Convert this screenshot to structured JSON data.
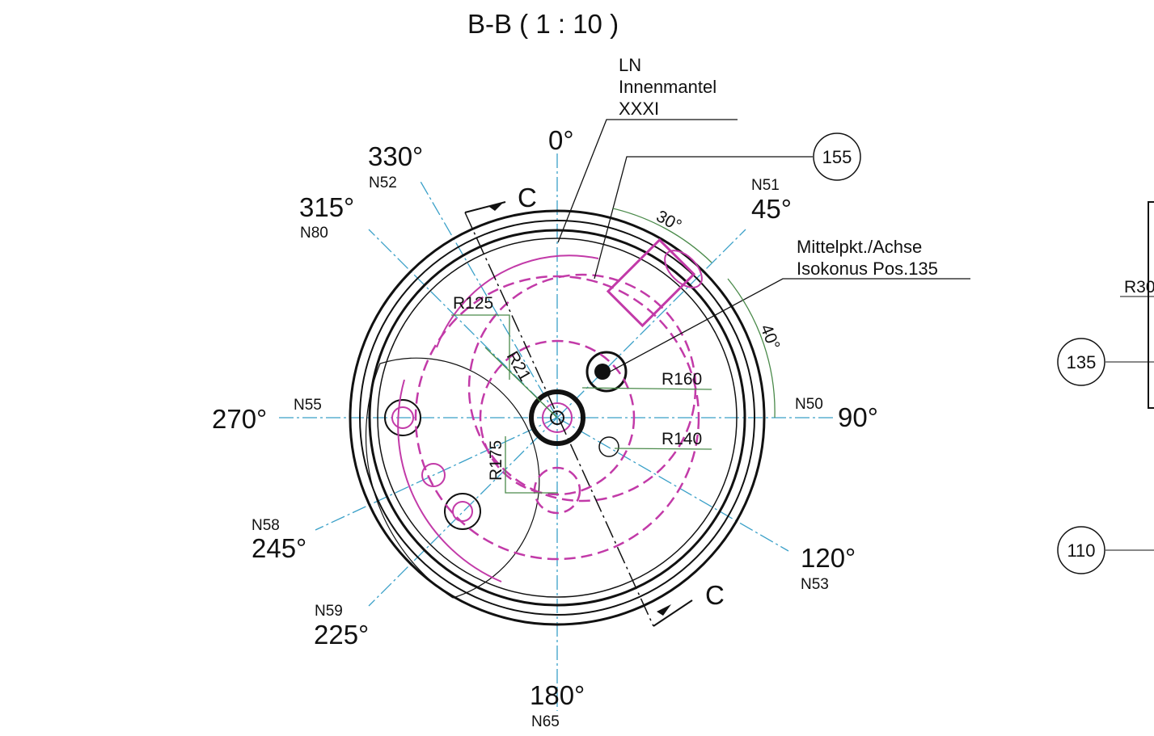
{
  "title": "B-B ( 1 : 10 )",
  "leader_note": {
    "lines": [
      "LN",
      "Innenmantel",
      "XXXI"
    ]
  },
  "center_note": {
    "lines": [
      "Mittelpkt./Achse",
      "Isokonus Pos.135"
    ]
  },
  "angles": [
    {
      "label": "0°"
    },
    {
      "label": "330°",
      "nozzle": "N52"
    },
    {
      "label": "315°",
      "nozzle": "N80"
    },
    {
      "label": "45°",
      "nozzle": "N51"
    },
    {
      "label": "270°",
      "nozzle": "N55"
    },
    {
      "label": "90°",
      "nozzle": "N50"
    },
    {
      "label": "245°",
      "nozzle": "N58"
    },
    {
      "label": "120°",
      "nozzle": "N53"
    },
    {
      "label": "225°",
      "nozzle": "N59"
    },
    {
      "label": "180°",
      "nozzle": "N65"
    }
  ],
  "angle_dimensions": [
    "30°",
    "40°"
  ],
  "radii": [
    "R125",
    "R21",
    "R160",
    "R140",
    "R175",
    "R30"
  ],
  "section_marks": [
    "C",
    "C"
  ],
  "balloons": [
    "155",
    "135",
    "110"
  ]
}
